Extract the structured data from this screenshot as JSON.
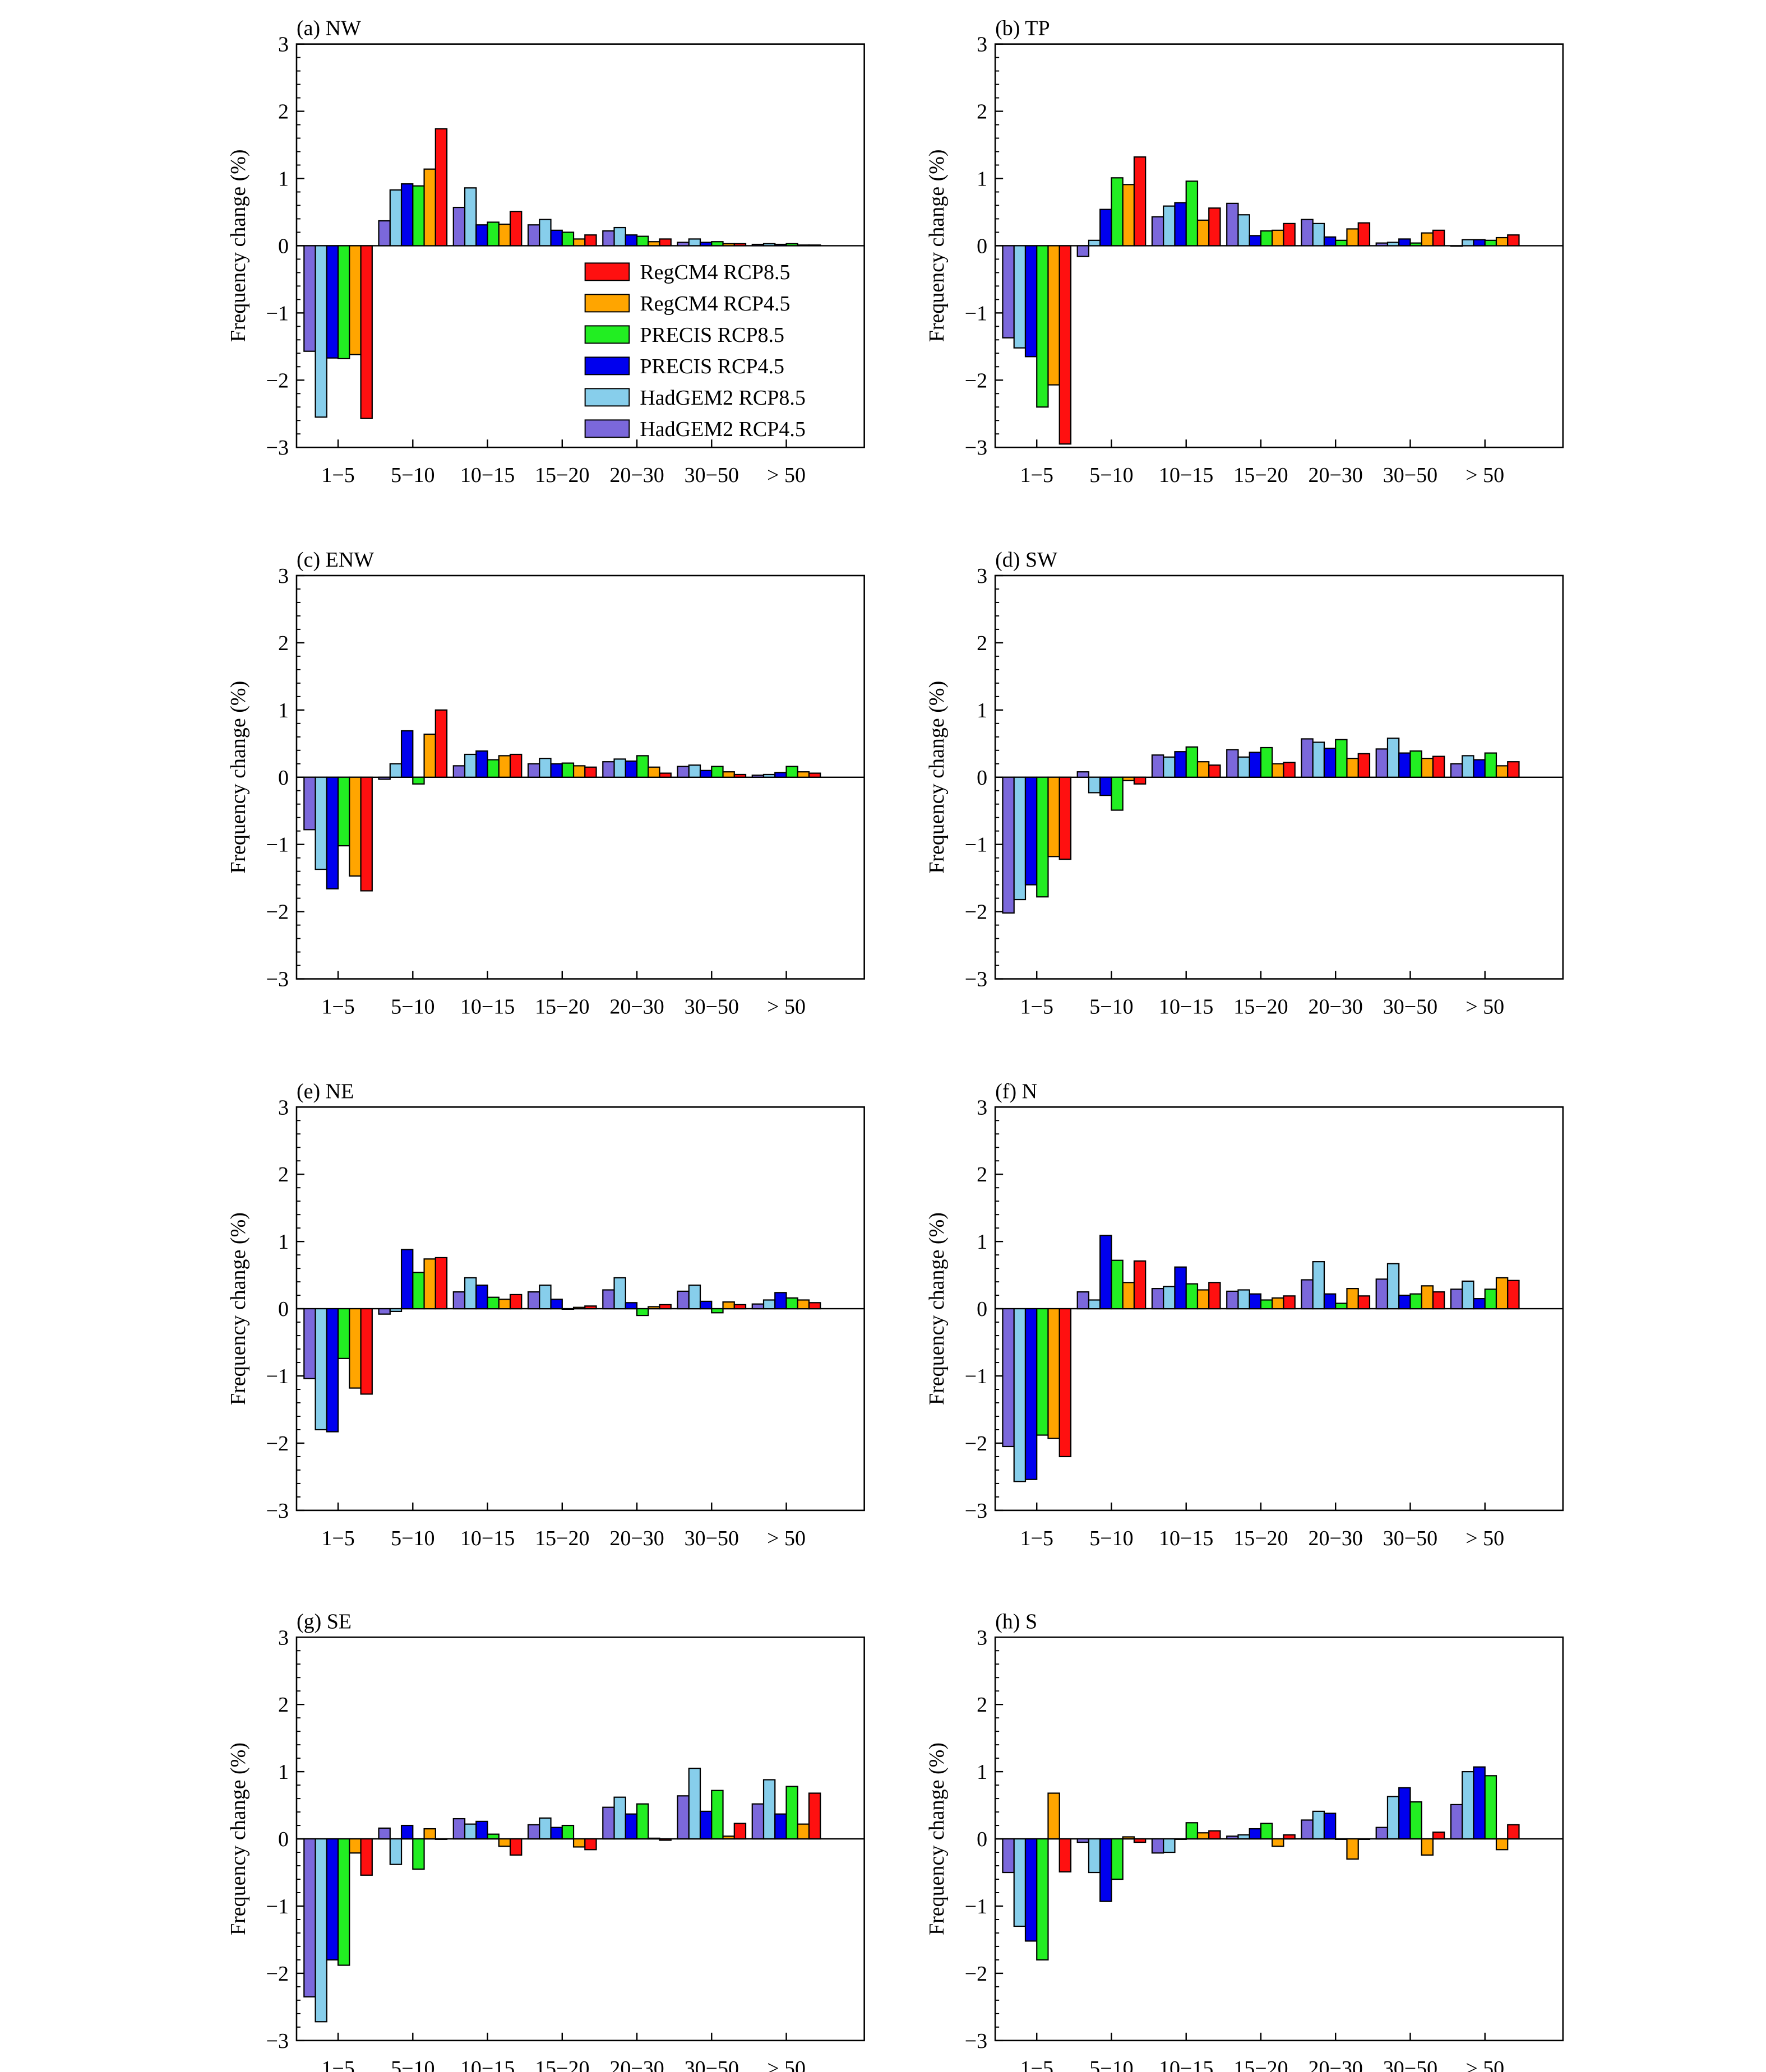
{
  "ylabel": "Frequency change (%)",
  "categories": [
    "1−5",
    "5−10",
    "10−15",
    "15−20",
    "20−30",
    "30−50",
    "> 50"
  ],
  "yticks": [
    "3",
    "2",
    "1",
    "0",
    "−1",
    "−2",
    "−3"
  ],
  "ylim": [
    -3,
    3
  ],
  "series": [
    {
      "name": "HadGEM2 RCP4.5",
      "color": "#7B68DB"
    },
    {
      "name": "HadGEM2 RCP8.5",
      "color": "#87CEEB"
    },
    {
      "name": "PRECIS RCP4.5",
      "color": "#0000EE"
    },
    {
      "name": "PRECIS RCP8.5",
      "color": "#22EE22"
    },
    {
      "name": "RegCM4 RCP4.5",
      "color": "#FFA500"
    },
    {
      "name": "RegCM4 RCP8.5",
      "color": "#FF1010"
    }
  ],
  "legend": {
    "entries": [
      "RegCM4 RCP8.5",
      "RegCM4 RCP4.5",
      "PRECIS RCP8.5",
      "PRECIS RCP4.5",
      "HadGEM2 RCP8.5",
      "HadGEM2 RCP4.5"
    ],
    "placement": "lower-right inside panel (a)"
  },
  "chart_data": [
    {
      "type": "bar",
      "title": "(a) NW",
      "ylim": [
        -3,
        3
      ],
      "values": [
        [
          -1.57,
          -2.55,
          -1.67,
          -1.68,
          -1.62,
          -2.57
        ],
        [
          0.37,
          0.83,
          0.92,
          0.89,
          1.14,
          1.74
        ],
        [
          0.57,
          0.86,
          0.31,
          0.35,
          0.32,
          0.51
        ],
        [
          0.31,
          0.39,
          0.23,
          0.2,
          0.1,
          0.16
        ],
        [
          0.22,
          0.27,
          0.16,
          0.14,
          0.06,
          0.1
        ],
        [
          0.05,
          0.1,
          0.05,
          0.06,
          0.03,
          0.03
        ],
        [
          0.02,
          0.03,
          0.02,
          0.03,
          0.01,
          0.01
        ]
      ]
    },
    {
      "type": "bar",
      "title": "(b) TP",
      "ylim": [
        -3,
        3
      ],
      "values": [
        [
          -1.37,
          -1.52,
          -1.65,
          -2.4,
          -2.07,
          -2.95
        ],
        [
          -0.16,
          0.08,
          0.54,
          1.01,
          0.91,
          1.32
        ],
        [
          0.43,
          0.59,
          0.64,
          0.96,
          0.38,
          0.56
        ],
        [
          0.63,
          0.46,
          0.15,
          0.22,
          0.23,
          0.33
        ],
        [
          0.39,
          0.33,
          0.13,
          0.08,
          0.25,
          0.34
        ],
        [
          0.04,
          0.05,
          0.1,
          0.04,
          0.19,
          0.23
        ],
        [
          0.0,
          0.09,
          0.09,
          0.08,
          0.12,
          0.16
        ]
      ]
    },
    {
      "type": "bar",
      "title": "(c) ENW",
      "ylim": [
        -3,
        3
      ],
      "values": [
        [
          -0.78,
          -1.37,
          -1.66,
          -1.02,
          -1.47,
          -1.69
        ],
        [
          -0.03,
          0.2,
          0.69,
          -0.1,
          0.64,
          1.0
        ],
        [
          0.17,
          0.34,
          0.39,
          0.26,
          0.32,
          0.34
        ],
        [
          0.2,
          0.28,
          0.2,
          0.21,
          0.17,
          0.15
        ],
        [
          0.23,
          0.27,
          0.24,
          0.32,
          0.15,
          0.06
        ],
        [
          0.16,
          0.18,
          0.1,
          0.16,
          0.08,
          0.04
        ],
        [
          0.03,
          0.04,
          0.07,
          0.16,
          0.08,
          0.06
        ]
      ]
    },
    {
      "type": "bar",
      "title": "(d) SW",
      "ylim": [
        -3,
        3
      ],
      "values": [
        [
          -2.02,
          -1.82,
          -1.6,
          -1.78,
          -1.18,
          -1.22
        ],
        [
          0.08,
          -0.23,
          -0.27,
          -0.49,
          -0.05,
          -0.1
        ],
        [
          0.33,
          0.3,
          0.38,
          0.45,
          0.23,
          0.18
        ],
        [
          0.41,
          0.3,
          0.37,
          0.44,
          0.2,
          0.22
        ],
        [
          0.57,
          0.52,
          0.43,
          0.56,
          0.28,
          0.35
        ],
        [
          0.42,
          0.58,
          0.36,
          0.39,
          0.28,
          0.31
        ],
        [
          0.2,
          0.32,
          0.26,
          0.36,
          0.17,
          0.23
        ]
      ]
    },
    {
      "type": "bar",
      "title": "(e) NE",
      "ylim": [
        -3,
        3
      ],
      "values": [
        [
          -1.04,
          -1.8,
          -1.83,
          -0.74,
          -1.18,
          -1.27
        ],
        [
          -0.08,
          -0.04,
          0.88,
          0.54,
          0.74,
          0.76
        ],
        [
          0.25,
          0.46,
          0.35,
          0.17,
          0.14,
          0.21
        ],
        [
          0.25,
          0.35,
          0.14,
          0.0,
          0.02,
          0.04
        ],
        [
          0.28,
          0.46,
          0.09,
          -0.1,
          0.03,
          0.06
        ],
        [
          0.26,
          0.35,
          0.11,
          -0.06,
          0.1,
          0.06
        ],
        [
          0.07,
          0.13,
          0.24,
          0.16,
          0.13,
          0.09
        ]
      ]
    },
    {
      "type": "bar",
      "title": "(f) N",
      "ylim": [
        -3,
        3
      ],
      "values": [
        [
          -2.05,
          -2.57,
          -2.54,
          -1.88,
          -1.93,
          -2.2
        ],
        [
          0.25,
          0.13,
          1.09,
          0.72,
          0.39,
          0.71
        ],
        [
          0.3,
          0.33,
          0.62,
          0.37,
          0.28,
          0.39
        ],
        [
          0.26,
          0.28,
          0.22,
          0.13,
          0.16,
          0.19
        ],
        [
          0.43,
          0.7,
          0.22,
          0.08,
          0.3,
          0.19
        ],
        [
          0.44,
          0.67,
          0.2,
          0.22,
          0.34,
          0.25
        ],
        [
          0.29,
          0.41,
          0.15,
          0.29,
          0.46,
          0.42
        ]
      ]
    },
    {
      "type": "bar",
      "title": "(g) SE",
      "ylim": [
        -3,
        3
      ],
      "values": [
        [
          -2.35,
          -2.72,
          -1.8,
          -1.88,
          -0.21,
          -0.54
        ],
        [
          0.16,
          -0.38,
          0.2,
          -0.45,
          0.15,
          0.0
        ],
        [
          0.3,
          0.22,
          0.26,
          0.07,
          -0.11,
          -0.24
        ],
        [
          0.21,
          0.31,
          0.17,
          0.2,
          -0.12,
          -0.16
        ],
        [
          0.47,
          0.62,
          0.37,
          0.52,
          0.01,
          -0.02
        ],
        [
          0.64,
          1.05,
          0.41,
          0.72,
          0.04,
          0.23
        ],
        [
          0.52,
          0.88,
          0.37,
          0.78,
          0.22,
          0.68
        ]
      ]
    },
    {
      "type": "bar",
      "title": "(h) S",
      "ylim": [
        -3,
        3
      ],
      "values": [
        [
          -0.5,
          -1.3,
          -1.52,
          -1.8,
          0.68,
          -0.49
        ],
        [
          -0.05,
          -0.5,
          -0.93,
          -0.6,
          0.03,
          -0.05
        ],
        [
          -0.21,
          -0.2,
          0.0,
          0.24,
          0.09,
          0.12
        ],
        [
          0.04,
          0.06,
          0.15,
          0.23,
          -0.11,
          0.06
        ],
        [
          0.28,
          0.41,
          0.38,
          0.0,
          -0.3,
          0.0
        ],
        [
          0.17,
          0.63,
          0.76,
          0.55,
          -0.24,
          0.1
        ],
        [
          0.51,
          1.0,
          1.07,
          0.94,
          -0.16,
          0.21
        ]
      ]
    }
  ]
}
